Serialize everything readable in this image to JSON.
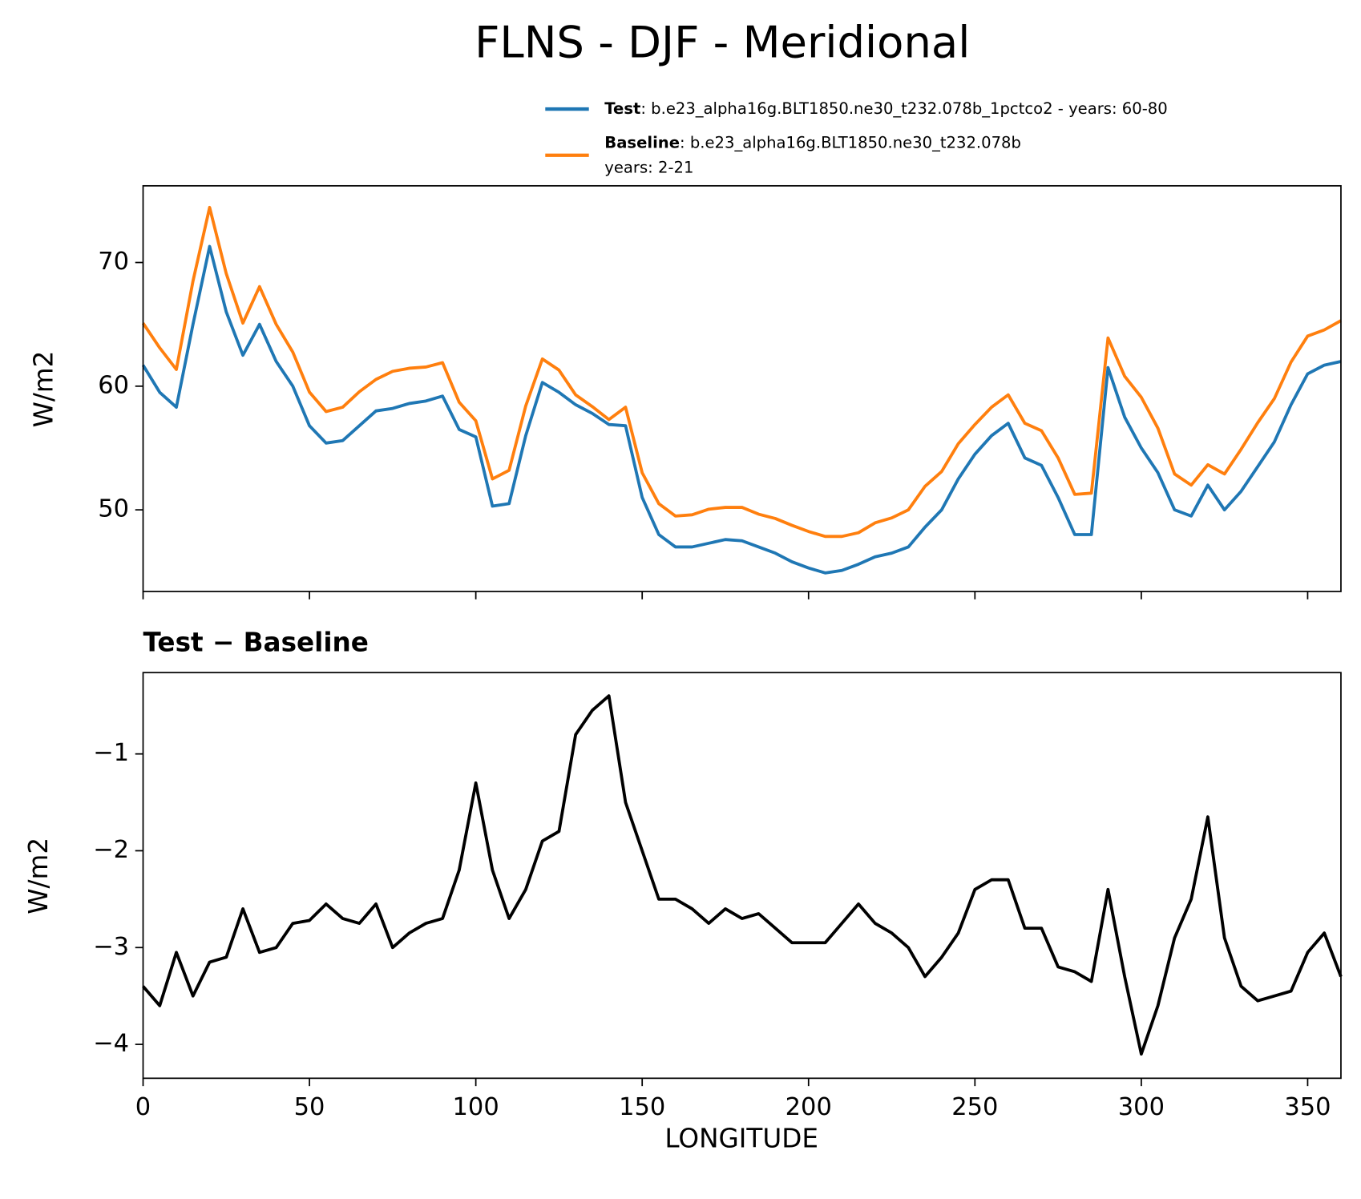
{
  "chart_data": [
    {
      "type": "line",
      "title": "FLNS - DJF - Meridional",
      "ylabel": "W/m2",
      "x": [
        0,
        5,
        10,
        15,
        20,
        25,
        30,
        35,
        40,
        45,
        50,
        55,
        60,
        65,
        70,
        75,
        80,
        85,
        90,
        95,
        100,
        105,
        110,
        115,
        120,
        125,
        130,
        135,
        140,
        145,
        150,
        155,
        160,
        165,
        170,
        175,
        180,
        185,
        190,
        195,
        200,
        205,
        210,
        215,
        220,
        225,
        230,
        235,
        240,
        245,
        250,
        255,
        260,
        265,
        270,
        275,
        280,
        285,
        290,
        295,
        300,
        305,
        310,
        315,
        320,
        325,
        330,
        335,
        340,
        345,
        350,
        355,
        360
      ],
      "series": [
        {
          "name": "Test",
          "label": ": b.e23_alpha16g.BLT1850.ne30_t232.078b_1pctco2 - years: 60-80",
          "color": "#1f77b4",
          "values": [
            61.7,
            59.5,
            58.3,
            65,
            71.3,
            66,
            62.5,
            65,
            62,
            60,
            56.8,
            55.4,
            55.6,
            56.8,
            58,
            58.2,
            58.6,
            58.8,
            59.2,
            56.5,
            55.9,
            50.3,
            50.5,
            56,
            60.3,
            59.5,
            58.5,
            57.8,
            56.9,
            56.8,
            51,
            48,
            47,
            47,
            47.3,
            47.6,
            47.5,
            47,
            46.5,
            45.8,
            45.3,
            44.9,
            45.1,
            45.6,
            46.2,
            46.5,
            47,
            48.6,
            50,
            52.5,
            54.5,
            56,
            57,
            54.2,
            53.6,
            51,
            48,
            48,
            61.5,
            57.5,
            55,
            53,
            50,
            49.5,
            52,
            50,
            51.5,
            53.5,
            55.5,
            58.5,
            61,
            61.7,
            62
          ]
        },
        {
          "name": "Baseline",
          "label": ": b.e23_alpha16g.BLT1850.ne30_t232.078b",
          "label2": "years: 2-21",
          "color": "#ff7f0e",
          "values": [
            65.1,
            63.1,
            61.35,
            68.5,
            74.45,
            69.1,
            65.1,
            68.05,
            65,
            62.75,
            59.52,
            57.95,
            58.3,
            59.55,
            60.55,
            61.2,
            61.45,
            61.55,
            61.9,
            58.7,
            57.2,
            52.5,
            53.2,
            58.4,
            62.2,
            61.3,
            59.3,
            58.35,
            57.3,
            58.3,
            53,
            50.5,
            49.5,
            49.6,
            50.05,
            50.2,
            50.2,
            49.65,
            49.3,
            48.75,
            48.25,
            47.85,
            47.85,
            48.15,
            48.95,
            49.35,
            50,
            51.9,
            53.1,
            55.35,
            56.9,
            58.3,
            59.3,
            57,
            56.4,
            54.2,
            51.25,
            51.35,
            63.9,
            60.8,
            59.1,
            56.6,
            52.9,
            52,
            53.65,
            52.9,
            54.9,
            57.05,
            59,
            61.95,
            64.05,
            64.55,
            65.3
          ]
        }
      ],
      "xlim": [
        0,
        360
      ],
      "xticks": [
        0,
        50,
        100,
        150,
        200,
        250,
        300,
        350
      ],
      "ylim": [
        43.4,
        76.2
      ],
      "yticks": [
        50,
        60,
        70
      ]
    },
    {
      "type": "line",
      "title": "Test − Baseline",
      "ylabel": "W/m2",
      "xlabel": "LONGITUDE",
      "color": "#000000",
      "x": [
        0,
        5,
        10,
        15,
        20,
        25,
        30,
        35,
        40,
        45,
        50,
        55,
        60,
        65,
        70,
        75,
        80,
        85,
        90,
        95,
        100,
        105,
        110,
        115,
        120,
        125,
        130,
        135,
        140,
        145,
        150,
        155,
        160,
        165,
        170,
        175,
        180,
        185,
        190,
        195,
        200,
        205,
        210,
        215,
        220,
        225,
        230,
        235,
        240,
        245,
        250,
        255,
        260,
        265,
        270,
        275,
        280,
        285,
        290,
        295,
        300,
        305,
        310,
        315,
        320,
        325,
        330,
        335,
        340,
        345,
        350,
        355,
        360
      ],
      "values": [
        -3.4,
        -3.6,
        -3.05,
        -3.5,
        -3.15,
        -3.1,
        -2.6,
        -3.05,
        -3.0,
        -2.75,
        -2.72,
        -2.55,
        -2.7,
        -2.75,
        -2.55,
        -3.0,
        -2.85,
        -2.75,
        -2.7,
        -2.2,
        -1.3,
        -2.2,
        -2.7,
        -2.4,
        -1.9,
        -1.8,
        -0.8,
        -0.55,
        -0.4,
        -1.5,
        -2.0,
        -2.5,
        -2.5,
        -2.6,
        -2.75,
        -2.6,
        -2.7,
        -2.65,
        -2.8,
        -2.95,
        -2.95,
        -2.95,
        -2.75,
        -2.55,
        -2.75,
        -2.85,
        -3.0,
        -3.3,
        -3.1,
        -2.85,
        -2.4,
        -2.3,
        -2.3,
        -2.8,
        -2.8,
        -3.2,
        -3.25,
        -3.35,
        -2.4,
        -3.3,
        -4.1,
        -3.6,
        -2.9,
        -2.5,
        -1.65,
        -2.9,
        -3.4,
        -3.55,
        -3.5,
        -3.45,
        -3.05,
        -2.85,
        -3.3
      ],
      "xlim": [
        0,
        360
      ],
      "xticks": [
        0,
        50,
        100,
        150,
        200,
        250,
        300,
        350
      ],
      "ylim": [
        -4.35,
        -0.16
      ],
      "yticks": [
        {
          "value": -4,
          "label": "−4"
        },
        {
          "value": -3,
          "label": "−3"
        },
        {
          "value": -2,
          "label": "−2"
        },
        {
          "value": -1,
          "label": "−1"
        }
      ]
    }
  ]
}
